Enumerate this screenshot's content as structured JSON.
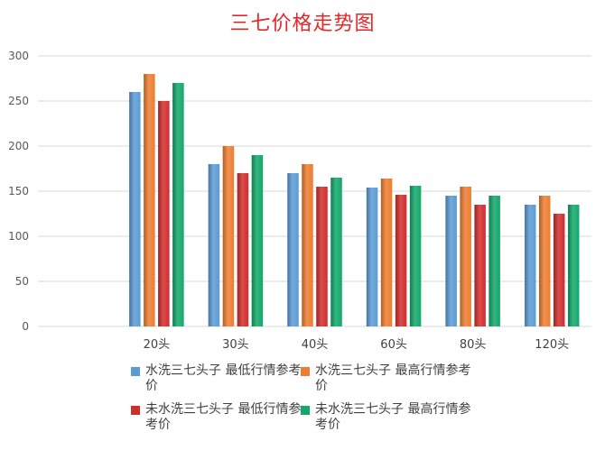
{
  "chart_data": {
    "type": "bar",
    "title": "三七价格走势图",
    "categories": [
      "",
      "20头",
      "30头",
      "40头",
      "60头",
      "80头",
      "120头"
    ],
    "series": [
      {
        "name": "水洗三七头子 最低行情参考价",
        "color": "#5b9bd5",
        "values": [
          null,
          260,
          180,
          170,
          154,
          145,
          135
        ]
      },
      {
        "name": "水洗三七头子 最高行情参考价",
        "color": "#ed7d31",
        "values": [
          null,
          280,
          200,
          180,
          164,
          155,
          145
        ]
      },
      {
        "name": "未水洗三七头子 最低行情参考价",
        "color": "#d22d2d",
        "values": [
          null,
          250,
          170,
          155,
          146,
          135,
          125
        ]
      },
      {
        "name": "未水洗三七头子 最高行情参考价",
        "color": "#12a86a",
        "values": [
          null,
          270,
          190,
          165,
          156,
          145,
          135
        ]
      }
    ],
    "yticks": [
      0,
      50,
      100,
      150,
      200,
      250,
      300
    ],
    "ylim": [
      0,
      300
    ],
    "grid": true,
    "legend_position": "bottom"
  }
}
